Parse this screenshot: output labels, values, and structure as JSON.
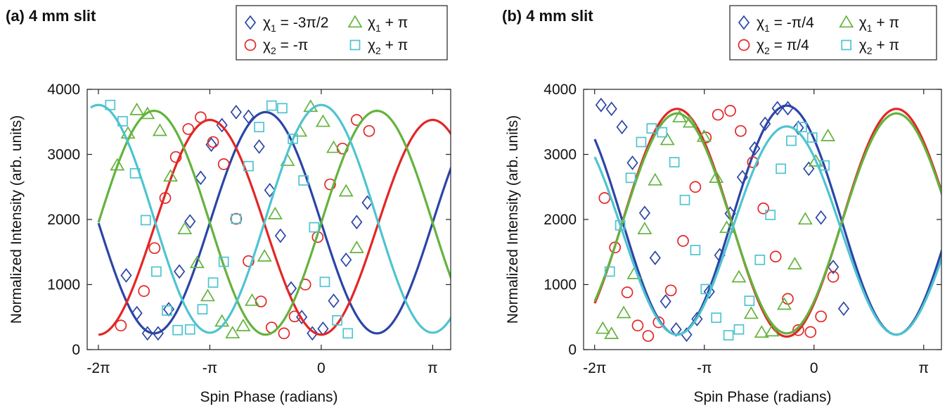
{
  "chart_data": [
    {
      "type": "line",
      "title": "(a) 4 mm slit",
      "xlabel": "Spin Phase (radians)",
      "ylabel": "Normalized Intensity (arb. units)",
      "xlim": [
        -6.6,
        3.65
      ],
      "ylim": [
        0,
        4000
      ],
      "x_ticks": [
        {
          "value": -6.2832,
          "label": "-2π"
        },
        {
          "value": -3.1416,
          "label": "-π"
        },
        {
          "value": 0,
          "label": "0"
        },
        {
          "value": 3.1416,
          "label": "π"
        }
      ],
      "y_ticks": [
        {
          "value": 0,
          "label": "0"
        },
        {
          "value": 1000,
          "label": "1000"
        },
        {
          "value": 2000,
          "label": "2000"
        },
        {
          "value": 3000,
          "label": "3000"
        },
        {
          "value": 4000,
          "label": "4000"
        }
      ],
      "grid": false,
      "legend_position": "top-right",
      "series": [
        {
          "name": "χ₁ = -3π/2",
          "legend_main": "χ",
          "legend_sub": "1",
          "legend_rest": " = -3π/2",
          "color": "#2b45a6",
          "marker": "diamond",
          "offset": 1950,
          "amplitude": 1700,
          "phase": 4.712,
          "x_range": [
            -6.28,
            3.7
          ],
          "points": [
            [
              -5.5,
              1140
            ],
            [
              -5.2,
              560
            ],
            [
              -4.9,
              250
            ],
            [
              -4.6,
              250
            ],
            [
              -4.3,
              620
            ],
            [
              -4.0,
              1200
            ],
            [
              -3.7,
              1970
            ],
            [
              -3.4,
              2640
            ],
            [
              -3.1,
              3150
            ],
            [
              -2.8,
              3450
            ],
            [
              -2.4,
              3650
            ],
            [
              -2.05,
              3580
            ],
            [
              -1.75,
              3120
            ],
            [
              -1.45,
              2450
            ],
            [
              -1.15,
              1750
            ],
            [
              -0.85,
              940
            ],
            [
              -0.55,
              500
            ],
            [
              -0.25,
              250
            ],
            [
              0.05,
              320
            ],
            [
              0.35,
              750
            ],
            [
              0.7,
              1380
            ],
            [
              1.0,
              1960
            ],
            [
              1.3,
              2260
            ]
          ]
        },
        {
          "name": "χ₂ = -π",
          "legend_main": "χ",
          "legend_sub": "2",
          "legend_rest": " = -π",
          "color": "#e32626",
          "marker": "circle",
          "offset": 1880,
          "amplitude": 1650,
          "phase": 3.1416,
          "x_range": [
            -6.28,
            3.7
          ],
          "points": [
            [
              -5.65,
              370
            ],
            [
              -5.0,
              900
            ],
            [
              -4.7,
              1560
            ],
            [
              -4.4,
              2330
            ],
            [
              -4.1,
              2960
            ],
            [
              -3.75,
              3390
            ],
            [
              -3.4,
              3570
            ],
            [
              -3.05,
              3190
            ],
            [
              -2.75,
              2850
            ],
            [
              -2.4,
              2010
            ],
            [
              -2.05,
              1360
            ],
            [
              -1.7,
              740
            ],
            [
              -1.4,
              340
            ],
            [
              -1.05,
              250
            ],
            [
              -0.75,
              510
            ],
            [
              -0.45,
              1000
            ],
            [
              -0.1,
              1730
            ],
            [
              0.25,
              2540
            ],
            [
              0.6,
              3090
            ],
            [
              1.0,
              3530
            ],
            [
              1.35,
              3360
            ]
          ]
        },
        {
          "name": "χ₁ + π",
          "legend_main": "χ",
          "legend_sub": "1",
          "legend_rest": " + π",
          "color": "#63b33d",
          "marker": "triangle",
          "offset": 1950,
          "amplitude": 1720,
          "phase": 1.571,
          "x_range": [
            -6.28,
            3.7
          ],
          "points": [
            [
              -5.75,
              2830
            ],
            [
              -5.45,
              3320
            ],
            [
              -5.2,
              3680
            ],
            [
              -4.9,
              3620
            ],
            [
              -4.55,
              3360
            ],
            [
              -4.25,
              2660
            ],
            [
              -3.85,
              1850
            ],
            [
              -3.5,
              1330
            ],
            [
              -3.2,
              820
            ],
            [
              -2.8,
              430
            ],
            [
              -2.5,
              250
            ],
            [
              -2.2,
              360
            ],
            [
              -1.95,
              750
            ],
            [
              -1.6,
              1430
            ],
            [
              -1.3,
              2080
            ],
            [
              -0.95,
              2900
            ],
            [
              -0.6,
              3350
            ],
            [
              -0.3,
              3730
            ],
            [
              0.05,
              3500
            ],
            [
              0.35,
              3100
            ],
            [
              0.7,
              2430
            ],
            [
              1.0,
              1560
            ]
          ]
        },
        {
          "name": "χ₂ + π",
          "legend_main": "χ",
          "legend_sub": "2",
          "legend_rest": " + π",
          "color": "#4ec4d0",
          "marker": "square",
          "offset": 2010,
          "amplitude": 1750,
          "phase": 0,
          "x_range": [
            -6.5,
            3.7
          ],
          "points": [
            [
              -5.95,
              3760
            ],
            [
              -5.6,
              3510
            ],
            [
              -5.25,
              2710
            ],
            [
              -4.95,
              1990
            ],
            [
              -4.65,
              1200
            ],
            [
              -4.35,
              600
            ],
            [
              -4.05,
              300
            ],
            [
              -3.7,
              310
            ],
            [
              -3.35,
              620
            ],
            [
              -3.05,
              1030
            ],
            [
              -2.75,
              1350
            ],
            [
              -2.4,
              2010
            ],
            [
              -2.05,
              2820
            ],
            [
              -1.75,
              3420
            ],
            [
              -1.4,
              3750
            ],
            [
              -1.1,
              3710
            ],
            [
              -0.8,
              3240
            ],
            [
              -0.5,
              2600
            ],
            [
              -0.2,
              1880
            ],
            [
              0.1,
              1040
            ],
            [
              0.45,
              450
            ],
            [
              0.75,
              250
            ]
          ]
        }
      ]
    },
    {
      "type": "line",
      "title": "(b) 4 mm slit",
      "xlabel": "Spin Phase (radians)",
      "ylabel": "Normalized Intensity (arb. units)",
      "xlim": [
        -6.6,
        3.65
      ],
      "ylim": [
        0,
        4000
      ],
      "x_ticks": [
        {
          "value": -6.2832,
          "label": "-2π"
        },
        {
          "value": -3.1416,
          "label": "-π"
        },
        {
          "value": 0,
          "label": "0"
        },
        {
          "value": 3.1416,
          "label": "π"
        }
      ],
      "y_ticks": [
        {
          "value": 0,
          "label": "0"
        },
        {
          "value": 1000,
          "label": "1000"
        },
        {
          "value": 2000,
          "label": "2000"
        },
        {
          "value": 3000,
          "label": "3000"
        },
        {
          "value": 4000,
          "label": "4000"
        }
      ],
      "grid": false,
      "legend_position": "top-right",
      "series": [
        {
          "name": "χ₁ = -π/4",
          "legend_main": "χ",
          "legend_sub": "1",
          "legend_rest": " = -π/4",
          "color": "#2b45a6",
          "marker": "diamond",
          "offset": 1990,
          "amplitude": 1760,
          "phase": 5.5,
          "x_range": [
            -6.28,
            3.7
          ],
          "points": [
            [
              -6.1,
              3760
            ],
            [
              -5.8,
              3700
            ],
            [
              -5.5,
              3420
            ],
            [
              -5.2,
              2870
            ],
            [
              -4.85,
              2100
            ],
            [
              -4.55,
              1410
            ],
            [
              -4.25,
              740
            ],
            [
              -3.95,
              310
            ],
            [
              -3.65,
              230
            ],
            [
              -3.35,
              470
            ],
            [
              -3.0,
              890
            ],
            [
              -2.7,
              1450
            ],
            [
              -2.4,
              2090
            ],
            [
              -2.05,
              2650
            ],
            [
              -1.7,
              3090
            ],
            [
              -1.4,
              3470
            ],
            [
              -1.05,
              3710
            ],
            [
              -0.75,
              3710
            ],
            [
              -0.45,
              3410
            ],
            [
              -0.15,
              2780
            ],
            [
              0.2,
              2030
            ],
            [
              0.55,
              1270
            ],
            [
              0.85,
              630
            ]
          ]
        },
        {
          "name": "χ₂ = π/4",
          "legend_main": "χ",
          "legend_sub": "2",
          "legend_rest": " = π/4",
          "color": "#e32626",
          "marker": "circle",
          "offset": 1950,
          "amplitude": 1750,
          "phase": 2.36,
          "x_range": [
            -6.28,
            3.7
          ],
          "points": [
            [
              -6.0,
              2330
            ],
            [
              -5.7,
              1570
            ],
            [
              -5.35,
              880
            ],
            [
              -5.05,
              370
            ],
            [
              -4.75,
              210
            ],
            [
              -4.45,
              420
            ],
            [
              -4.1,
              910
            ],
            [
              -3.75,
              1670
            ],
            [
              -3.4,
              2500
            ],
            [
              -3.1,
              3260
            ],
            [
              -2.75,
              3610
            ],
            [
              -2.4,
              3670
            ],
            [
              -2.1,
              3360
            ],
            [
              -1.75,
              2880
            ],
            [
              -1.45,
              2170
            ],
            [
              -1.1,
              1430
            ],
            [
              -0.75,
              780
            ],
            [
              -0.45,
              300
            ],
            [
              -0.1,
              270
            ],
            [
              0.2,
              510
            ],
            [
              0.55,
              1120
            ]
          ]
        },
        {
          "name": "χ₁ + π",
          "legend_main": "χ",
          "legend_sub": "1",
          "legend_rest": " + π",
          "color": "#63b33d",
          "marker": "triangle",
          "offset": 1940,
          "amplitude": 1690,
          "phase": 2.36,
          "x_range": [
            -6.28,
            3.7
          ],
          "points": [
            [
              -6.05,
              320
            ],
            [
              -5.8,
              240
            ],
            [
              -5.45,
              560
            ],
            [
              -5.15,
              1160
            ],
            [
              -4.85,
              1850
            ],
            [
              -4.55,
              2600
            ],
            [
              -4.2,
              3220
            ],
            [
              -3.85,
              3570
            ],
            [
              -3.55,
              3490
            ],
            [
              -3.15,
              3270
            ],
            [
              -2.8,
              2640
            ],
            [
              -2.5,
              1870
            ],
            [
              -2.15,
              1110
            ],
            [
              -1.8,
              550
            ],
            [
              -1.5,
              260
            ],
            [
              -1.2,
              280
            ],
            [
              -0.85,
              690
            ],
            [
              -0.55,
              1310
            ],
            [
              -0.25,
              2000
            ],
            [
              0.05,
              2890
            ],
            [
              0.4,
              3280
            ]
          ]
        },
        {
          "name": "χ₂ + π",
          "legend_main": "χ",
          "legend_sub": "2",
          "legend_rest": " + π",
          "color": "#4ec4d0",
          "marker": "square",
          "offset": 1830,
          "amplitude": 1600,
          "phase": 5.5,
          "x_range": [
            -6.28,
            3.7
          ],
          "points": [
            [
              -5.85,
              1200
            ],
            [
              -5.55,
              1910
            ],
            [
              -5.25,
              2640
            ],
            [
              -4.95,
              3190
            ],
            [
              -4.65,
              3400
            ],
            [
              -4.35,
              3340
            ],
            [
              -4.0,
              2880
            ],
            [
              -3.7,
              2300
            ],
            [
              -3.4,
              1530
            ],
            [
              -3.1,
              930
            ],
            [
              -2.8,
              490
            ],
            [
              -2.45,
              220
            ],
            [
              -2.15,
              310
            ],
            [
              -1.85,
              750
            ],
            [
              -1.55,
              1380
            ],
            [
              -1.25,
              2070
            ],
            [
              -0.95,
              2780
            ],
            [
              -0.65,
              3210
            ],
            [
              -0.35,
              3420
            ],
            [
              -0.05,
              3260
            ],
            [
              0.3,
              2830
            ]
          ]
        }
      ]
    }
  ]
}
